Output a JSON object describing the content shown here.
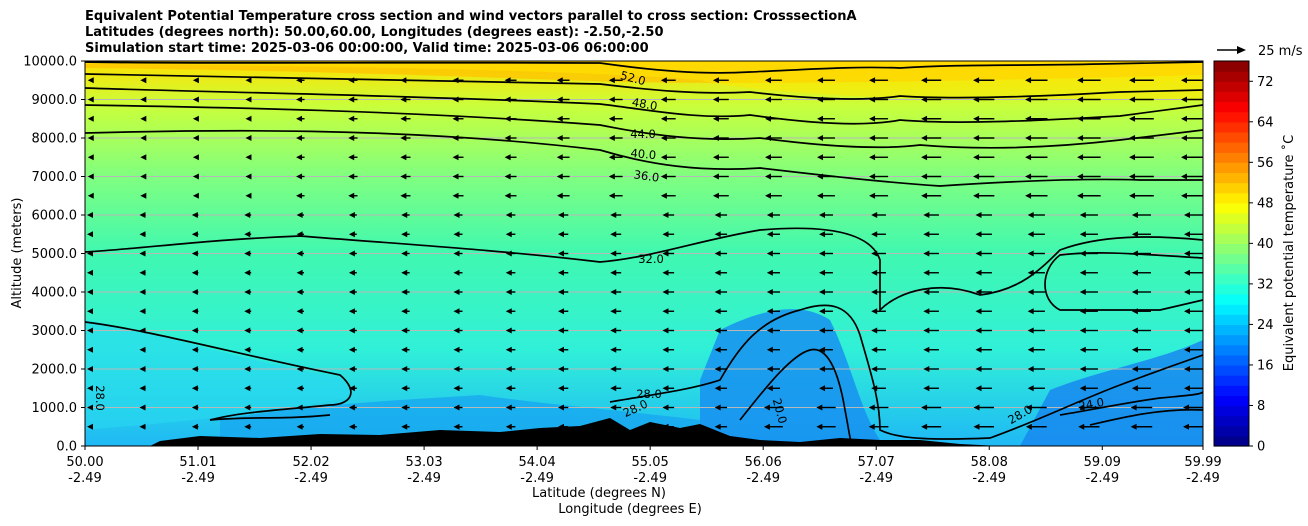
{
  "titles": {
    "line1": "Equivalent Potential Temperature cross section and wind vectors parallel to cross section: CrosssectionA",
    "line2": "Latitudes (degrees north): 50.00,60.00, Longitudes (degrees east): -2.50,-2.50",
    "line3": "Simulation start time: 2025-03-06 00:00:00, Valid time: 2025-03-06 06:00:00"
  },
  "chart_data": {
    "type": "heatmap",
    "title": "Equivalent Potential Temperature cross section and wind vectors parallel to cross section: CrosssectionA",
    "ylabel": "Altitude (meters)",
    "xlabel": "Latitude (degrees N)",
    "xlabel2": "Longitude (degrees E)",
    "ylim": [
      0,
      10000
    ],
    "xlim": [
      50.0,
      59.99
    ],
    "yticks": [
      "0.0",
      "1000.0",
      "2000.0",
      "3000.0",
      "4000.0",
      "5000.0",
      "6000.0",
      "7000.0",
      "8000.0",
      "9000.0",
      "10000.0"
    ],
    "ytick_values": [
      0,
      1000,
      2000,
      3000,
      4000,
      5000,
      6000,
      7000,
      8000,
      9000,
      10000
    ],
    "xticks_lat": [
      "50.00",
      "51.01",
      "52.02",
      "53.03",
      "54.04",
      "55.05",
      "56.06",
      "57.07",
      "58.08",
      "59.09",
      "59.99"
    ],
    "xtick_values": [
      50.0,
      51.01,
      52.02,
      53.03,
      54.04,
      55.05,
      56.06,
      57.07,
      58.08,
      59.09,
      59.99
    ],
    "xticks_lon": [
      "-2.49",
      "-2.49",
      "-2.49",
      "-2.49",
      "-2.49",
      "-2.49",
      "-2.49",
      "-2.49",
      "-2.49",
      "-2.49",
      "-2.49"
    ],
    "grid": true,
    "colorbar": {
      "label": "Equivalent potential temperature $^\\circ$C",
      "label_text": "Equivalent potential temperature ˚C",
      "min": 0,
      "max": 76,
      "ticks": [
        "0",
        "8",
        "16",
        "24",
        "32",
        "40",
        "48",
        "56",
        "64",
        "72"
      ],
      "tick_values": [
        0,
        8,
        16,
        24,
        32,
        40,
        48,
        56,
        64,
        72
      ],
      "colormap": "jet"
    },
    "wind_reference": "25 m/s",
    "contour_labels": [
      "52.0",
      "48.0",
      "44.0",
      "40.0",
      "36.0",
      "32.0",
      "28.0",
      "28.0",
      "20.0",
      "28.0",
      "24.0",
      "28.0"
    ],
    "contour_levels": [
      20,
      24,
      28,
      32,
      36,
      40,
      44,
      48,
      52
    ]
  }
}
